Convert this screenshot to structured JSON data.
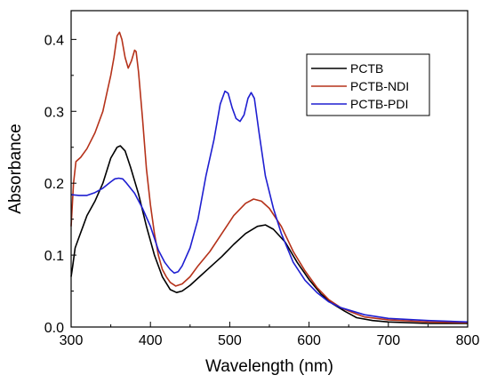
{
  "chart_data": {
    "type": "line",
    "title": "",
    "xlabel": "Wavelength (nm)",
    "ylabel": "Absorbance",
    "xlim": [
      300,
      800
    ],
    "ylim": [
      0.0,
      0.44
    ],
    "x_ticks": [
      300,
      400,
      500,
      600,
      700,
      800
    ],
    "y_ticks": [
      0.0,
      0.1,
      0.2,
      0.3,
      0.4
    ],
    "x_tick_labels": [
      "300",
      "400",
      "500",
      "600",
      "700",
      "800"
    ],
    "y_tick_labels": [
      "0.0",
      "0.1",
      "0.2",
      "0.3",
      "0.4"
    ],
    "grid": false,
    "legend_position": "top-right",
    "series": [
      {
        "name": "PCTB",
        "color": "#000000",
        "points": [
          [
            300,
            0.07
          ],
          [
            302,
            0.085
          ],
          [
            305,
            0.11
          ],
          [
            310,
            0.125
          ],
          [
            315,
            0.14
          ],
          [
            320,
            0.155
          ],
          [
            330,
            0.175
          ],
          [
            340,
            0.2
          ],
          [
            350,
            0.235
          ],
          [
            358,
            0.25
          ],
          [
            362,
            0.252
          ],
          [
            368,
            0.245
          ],
          [
            375,
            0.222
          ],
          [
            385,
            0.185
          ],
          [
            395,
            0.14
          ],
          [
            405,
            0.1
          ],
          [
            415,
            0.07
          ],
          [
            425,
            0.052
          ],
          [
            433,
            0.048
          ],
          [
            440,
            0.05
          ],
          [
            450,
            0.058
          ],
          [
            460,
            0.068
          ],
          [
            475,
            0.083
          ],
          [
            490,
            0.098
          ],
          [
            505,
            0.115
          ],
          [
            520,
            0.13
          ],
          [
            535,
            0.14
          ],
          [
            545,
            0.142
          ],
          [
            555,
            0.136
          ],
          [
            570,
            0.118
          ],
          [
            585,
            0.09
          ],
          [
            600,
            0.066
          ],
          [
            615,
            0.046
          ],
          [
            630,
            0.032
          ],
          [
            645,
            0.022
          ],
          [
            655,
            0.016
          ],
          [
            660,
            0.013
          ],
          [
            680,
            0.009
          ],
          [
            700,
            0.007
          ],
          [
            750,
            0.005
          ],
          [
            800,
            0.005
          ]
        ]
      },
      {
        "name": "PCTB-NDI",
        "color": "#b5321a",
        "points": [
          [
            300,
            0.14
          ],
          [
            303,
            0.2
          ],
          [
            306,
            0.23
          ],
          [
            312,
            0.236
          ],
          [
            320,
            0.248
          ],
          [
            330,
            0.27
          ],
          [
            340,
            0.3
          ],
          [
            346,
            0.33
          ],
          [
            350,
            0.35
          ],
          [
            354,
            0.375
          ],
          [
            358,
            0.405
          ],
          [
            361,
            0.41
          ],
          [
            364,
            0.4
          ],
          [
            368,
            0.375
          ],
          [
            372,
            0.36
          ],
          [
            376,
            0.37
          ],
          [
            380,
            0.385
          ],
          [
            382,
            0.383
          ],
          [
            385,
            0.355
          ],
          [
            390,
            0.29
          ],
          [
            395,
            0.22
          ],
          [
            400,
            0.17
          ],
          [
            405,
            0.13
          ],
          [
            410,
            0.1
          ],
          [
            415,
            0.08
          ],
          [
            420,
            0.07
          ],
          [
            425,
            0.062
          ],
          [
            432,
            0.057
          ],
          [
            440,
            0.06
          ],
          [
            450,
            0.07
          ],
          [
            460,
            0.085
          ],
          [
            475,
            0.105
          ],
          [
            490,
            0.13
          ],
          [
            505,
            0.155
          ],
          [
            520,
            0.172
          ],
          [
            530,
            0.178
          ],
          [
            540,
            0.175
          ],
          [
            550,
            0.165
          ],
          [
            565,
            0.14
          ],
          [
            580,
            0.105
          ],
          [
            595,
            0.078
          ],
          [
            610,
            0.055
          ],
          [
            625,
            0.038
          ],
          [
            640,
            0.027
          ],
          [
            655,
            0.02
          ],
          [
            670,
            0.014
          ],
          [
            700,
            0.01
          ],
          [
            750,
            0.007
          ],
          [
            800,
            0.006
          ]
        ]
      },
      {
        "name": "PCTB-PDI",
        "color": "#1f1fd1",
        "points": [
          [
            300,
            0.184
          ],
          [
            310,
            0.183
          ],
          [
            320,
            0.183
          ],
          [
            330,
            0.187
          ],
          [
            340,
            0.193
          ],
          [
            350,
            0.202
          ],
          [
            355,
            0.206
          ],
          [
            360,
            0.207
          ],
          [
            365,
            0.206
          ],
          [
            370,
            0.2
          ],
          [
            380,
            0.186
          ],
          [
            390,
            0.165
          ],
          [
            400,
            0.14
          ],
          [
            410,
            0.107
          ],
          [
            418,
            0.09
          ],
          [
            425,
            0.08
          ],
          [
            430,
            0.075
          ],
          [
            435,
            0.077
          ],
          [
            440,
            0.085
          ],
          [
            450,
            0.11
          ],
          [
            460,
            0.15
          ],
          [
            470,
            0.21
          ],
          [
            480,
            0.26
          ],
          [
            488,
            0.31
          ],
          [
            494,
            0.328
          ],
          [
            498,
            0.325
          ],
          [
            503,
            0.305
          ],
          [
            508,
            0.29
          ],
          [
            513,
            0.286
          ],
          [
            518,
            0.295
          ],
          [
            523,
            0.318
          ],
          [
            527,
            0.326
          ],
          [
            531,
            0.318
          ],
          [
            537,
            0.27
          ],
          [
            545,
            0.21
          ],
          [
            555,
            0.165
          ],
          [
            565,
            0.13
          ],
          [
            580,
            0.09
          ],
          [
            595,
            0.065
          ],
          [
            610,
            0.048
          ],
          [
            625,
            0.035
          ],
          [
            640,
            0.027
          ],
          [
            655,
            0.022
          ],
          [
            670,
            0.017
          ],
          [
            700,
            0.012
          ],
          [
            750,
            0.009
          ],
          [
            800,
            0.007
          ]
        ]
      }
    ]
  }
}
